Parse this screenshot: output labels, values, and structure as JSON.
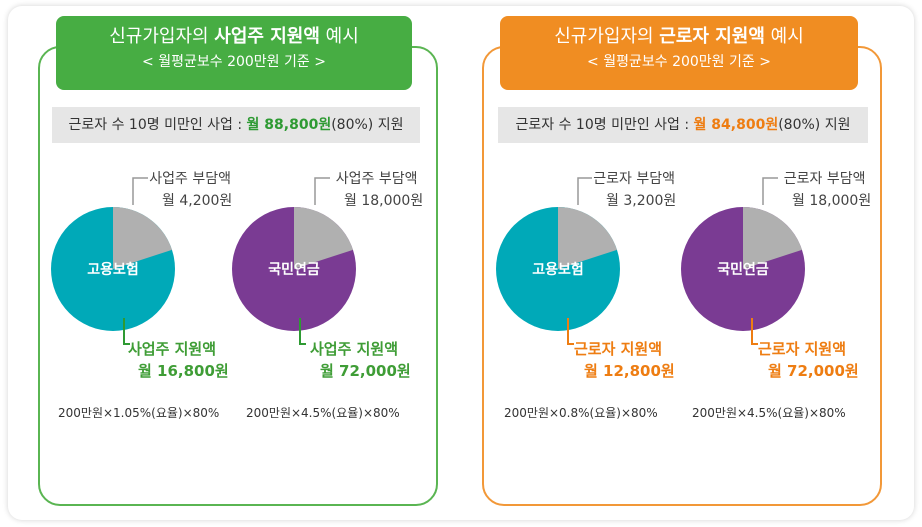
{
  "colors": {
    "green_header": "#47ad43",
    "green_border": "#5ab552",
    "green_text": "#2e9a33",
    "orange_header": "#f08d22",
    "orange_border": "#f29838",
    "orange_text": "#ee7d12",
    "teal_pie": "#00a9b8",
    "purple_pie": "#7a3b93",
    "gray_slice": "#b0b0b0",
    "summary_bg": "#e6e6e6"
  },
  "left_panel": {
    "title_prefix": "신규가입자의",
    "title_bold": "사업주 지원액",
    "title_suffix": "예시",
    "subtitle": "< 월평균보수 200만원 기준 >",
    "summary_prefix": "근로자 수 10명 미만인 사업 :",
    "summary_bold": "월 88,800원",
    "summary_suffix": "(80%) 지원"
  },
  "right_panel": {
    "title_prefix": "신규가입자의",
    "title_bold": "근로자 지원액",
    "title_suffix": "예시",
    "subtitle": "< 월평균보수 200만원 기준 >",
    "summary_prefix": "근로자 수 10명 미만인 사업 :",
    "summary_bold": "월 84,800원",
    "summary_suffix": "(80%) 지원"
  },
  "chart_data": [
    {
      "type": "pie",
      "title": "고용보험",
      "slices": [
        {
          "label": "사업주 부담액",
          "amount_text": "월 4,200원",
          "value": 4200
        },
        {
          "label": "사업주 지원액",
          "amount_text": "월 16,800원",
          "value": 16800
        }
      ],
      "formula": "200만원×1.05%(요율)×80%"
    },
    {
      "type": "pie",
      "title": "국민연금",
      "slices": [
        {
          "label": "사업주 부담액",
          "amount_text": "월 18,000원",
          "value": 18000
        },
        {
          "label": "사업주 지원액",
          "amount_text": "월 72,000원",
          "value": 72000
        }
      ],
      "formula": "200만원×4.5%(요율)×80%"
    },
    {
      "type": "pie",
      "title": "고용보험",
      "slices": [
        {
          "label": "근로자 부담액",
          "amount_text": "월 3,200원",
          "value": 3200
        },
        {
          "label": "근로자 지원액",
          "amount_text": "월 12,800원",
          "value": 12800
        }
      ],
      "formula": "200만원×0.8%(요율)×80%"
    },
    {
      "type": "pie",
      "title": "국민연금",
      "slices": [
        {
          "label": "근로자 부담액",
          "amount_text": "월 18,000원",
          "value": 18000
        },
        {
          "label": "근로자 지원액",
          "amount_text": "월 72,000원",
          "value": 72000
        }
      ],
      "formula": "200만원×4.5%(요율)×80%"
    }
  ]
}
